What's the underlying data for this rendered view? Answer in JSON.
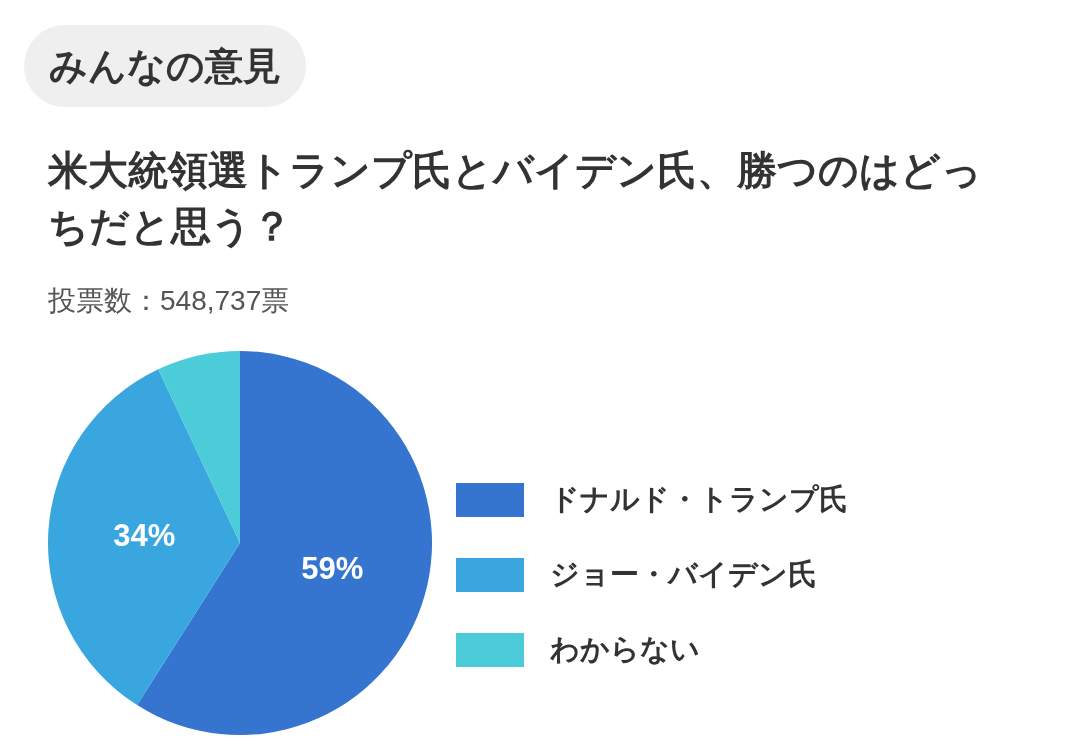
{
  "chart_data": {
    "type": "pie",
    "title": "米大統領選トランプ氏とバイデン氏、勝つのはどっちだと思う？",
    "subtitle": "投票数：548,737票",
    "annotations": [
      "みんなの意見"
    ],
    "categories": [
      "ドナルド・トランプ氏",
      "ジョー・バイデン氏",
      "わからない"
    ],
    "values": [
      59,
      34,
      7
    ],
    "value_labels": [
      "59%",
      "34%",
      null
    ],
    "colors": [
      "#3574cf",
      "#39a6df",
      "#4ccbd8"
    ],
    "legend": "right"
  }
}
